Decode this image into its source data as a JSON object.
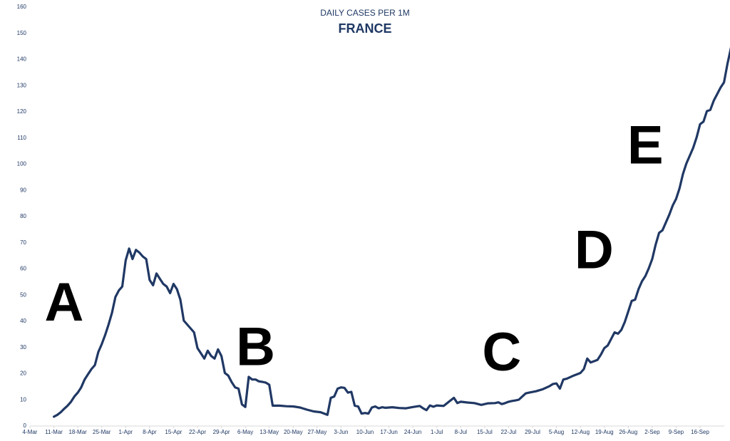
{
  "chart_data": {
    "type": "line",
    "title": "DAILY CASES PER 1M",
    "subtitle": "FRANCE",
    "xlabel": "",
    "ylabel": "",
    "ylim": [
      0,
      160
    ],
    "yticks": [
      0,
      10,
      20,
      30,
      40,
      50,
      60,
      70,
      80,
      90,
      100,
      110,
      120,
      130,
      140,
      150,
      160
    ],
    "xlim": [
      "2020-03-04",
      "2020-09-21"
    ],
    "x_tick_labels": [
      "4-Mar",
      "11-Mar",
      "18-Mar",
      "25-Mar",
      "1-Apr",
      "8-Apr",
      "15-Apr",
      "22-Apr",
      "29-Apr",
      "6-May",
      "13-May",
      "20-May",
      "27-May",
      "3-Jun",
      "10-Jun",
      "17-Jun",
      "24-Jun",
      "1-Jul",
      "8-Jul",
      "15-Jul",
      "22-Jul",
      "29-Jul",
      "5-Aug",
      "12-Aug",
      "19-Aug",
      "26-Aug",
      "2-Sep",
      "9-Sep",
      "16-Sep"
    ],
    "grid": false,
    "legend": "none",
    "line_color": "#203864",
    "annotations": [
      {
        "text": "A",
        "x": "2020-03-14",
        "y": 40
      },
      {
        "text": "B",
        "x": "2020-05-09",
        "y": 23
      },
      {
        "text": "C",
        "x": "2020-07-20",
        "y": 21
      },
      {
        "text": "D",
        "x": "2020-08-16",
        "y": 60
      },
      {
        "text": "E",
        "x": "2020-08-31",
        "y": 100
      }
    ],
    "series": [
      {
        "points": [
          [
            "2020-03-11",
            3.3
          ],
          [
            "2020-03-12",
            4
          ],
          [
            "2020-03-13",
            5
          ],
          [
            "2020-03-14",
            6.3
          ],
          [
            "2020-03-15",
            7.5
          ],
          [
            "2020-03-16",
            9
          ],
          [
            "2020-03-17",
            11
          ],
          [
            "2020-03-18",
            12.5
          ],
          [
            "2020-03-19",
            14.5
          ],
          [
            "2020-03-20",
            17.5
          ],
          [
            "2020-03-21",
            19.5
          ],
          [
            "2020-03-22",
            21.5
          ],
          [
            "2020-03-23",
            23
          ],
          [
            "2020-03-24",
            28
          ],
          [
            "2020-03-25",
            31
          ],
          [
            "2020-03-26",
            34.5
          ],
          [
            "2020-03-27",
            38.5
          ],
          [
            "2020-03-28",
            43
          ],
          [
            "2020-03-29",
            49
          ],
          [
            "2020-03-30",
            51.5
          ],
          [
            "2020-03-31",
            53
          ],
          [
            "2020-04-01",
            63
          ],
          [
            "2020-04-02",
            67.5
          ],
          [
            "2020-04-03",
            63.5
          ],
          [
            "2020-04-04",
            67
          ],
          [
            "2020-04-05",
            66
          ],
          [
            "2020-04-06",
            64.5
          ],
          [
            "2020-04-07",
            63.5
          ],
          [
            "2020-04-08",
            55.5
          ],
          [
            "2020-04-09",
            53.5
          ],
          [
            "2020-04-10",
            58
          ],
          [
            "2020-04-11",
            56
          ],
          [
            "2020-04-12",
            54
          ],
          [
            "2020-04-13",
            53
          ],
          [
            "2020-04-14",
            50.5
          ],
          [
            "2020-04-15",
            54
          ],
          [
            "2020-04-16",
            52
          ],
          [
            "2020-04-17",
            48
          ],
          [
            "2020-04-18",
            40
          ],
          [
            "2020-04-19",
            38.5
          ],
          [
            "2020-04-20",
            37
          ],
          [
            "2020-04-21",
            35.5
          ],
          [
            "2020-04-22",
            29.5
          ],
          [
            "2020-04-23",
            27.5
          ],
          [
            "2020-04-24",
            25.5
          ],
          [
            "2020-04-25",
            28.5
          ],
          [
            "2020-04-26",
            26.5
          ],
          [
            "2020-04-27",
            25.5
          ],
          [
            "2020-04-28",
            29
          ],
          [
            "2020-04-29",
            26.5
          ],
          [
            "2020-04-30",
            20
          ],
          [
            "2020-05-01",
            19
          ],
          [
            "2020-05-02",
            16.5
          ],
          [
            "2020-05-03",
            14.5
          ],
          [
            "2020-05-04",
            14
          ],
          [
            "2020-05-05",
            8
          ],
          [
            "2020-05-06",
            7
          ],
          [
            "2020-05-07",
            18.5
          ],
          [
            "2020-05-08",
            17.5
          ],
          [
            "2020-05-09",
            17.5
          ],
          [
            "2020-05-10",
            16.8
          ],
          [
            "2020-05-11",
            16.6
          ],
          [
            "2020-05-12",
            16.3
          ],
          [
            "2020-05-13",
            15.5
          ],
          [
            "2020-05-14",
            7.5
          ],
          [
            "2020-05-16",
            7.5
          ],
          [
            "2020-05-18",
            7.3
          ],
          [
            "2020-05-20",
            7.2
          ],
          [
            "2020-05-22",
            6.8
          ],
          [
            "2020-05-24",
            6
          ],
          [
            "2020-05-26",
            5.3
          ],
          [
            "2020-05-28",
            5
          ],
          [
            "2020-05-30",
            4
          ],
          [
            "2020-05-31",
            10.5
          ],
          [
            "2020-06-01",
            11
          ],
          [
            "2020-06-02",
            14
          ],
          [
            "2020-06-03",
            14.5
          ],
          [
            "2020-06-04",
            14.3
          ],
          [
            "2020-06-05",
            12.5
          ],
          [
            "2020-06-06",
            12.8
          ],
          [
            "2020-06-07",
            7.5
          ],
          [
            "2020-06-08",
            7.2
          ],
          [
            "2020-06-09",
            4.5
          ],
          [
            "2020-06-10",
            4.7
          ],
          [
            "2020-06-11",
            4.5
          ],
          [
            "2020-06-12",
            6.8
          ],
          [
            "2020-06-13",
            7.2
          ],
          [
            "2020-06-14",
            6.5
          ],
          [
            "2020-06-15",
            6.9
          ],
          [
            "2020-06-16",
            6.7
          ],
          [
            "2020-06-18",
            6.9
          ],
          [
            "2020-06-20",
            6.6
          ],
          [
            "2020-06-22",
            6.5
          ],
          [
            "2020-06-24",
            7
          ],
          [
            "2020-06-26",
            7.4
          ],
          [
            "2020-06-27",
            6.5
          ],
          [
            "2020-06-28",
            5.8
          ],
          [
            "2020-06-29",
            7.6
          ],
          [
            "2020-06-30",
            7.1
          ],
          [
            "2020-07-01",
            7.6
          ],
          [
            "2020-07-03",
            7.4
          ],
          [
            "2020-07-05",
            9.5
          ],
          [
            "2020-07-06",
            10.5
          ],
          [
            "2020-07-07",
            8.5
          ],
          [
            "2020-07-08",
            9
          ],
          [
            "2020-07-10",
            8.7
          ],
          [
            "2020-07-12",
            8.5
          ],
          [
            "2020-07-14",
            7.8
          ],
          [
            "2020-07-16",
            8.4
          ],
          [
            "2020-07-18",
            8.5
          ],
          [
            "2020-07-19",
            8.8
          ],
          [
            "2020-07-20",
            8.1
          ],
          [
            "2020-07-21",
            8.5
          ],
          [
            "2020-07-22",
            9
          ],
          [
            "2020-07-23",
            9.3
          ],
          [
            "2020-07-24",
            9.5
          ],
          [
            "2020-07-25",
            9.8
          ],
          [
            "2020-07-26",
            11
          ],
          [
            "2020-07-27",
            12.2
          ],
          [
            "2020-07-28",
            12.5
          ],
          [
            "2020-07-30",
            13
          ],
          [
            "2020-08-01",
            13.8
          ],
          [
            "2020-08-03",
            15
          ],
          [
            "2020-08-04",
            15.8
          ],
          [
            "2020-08-05",
            16
          ],
          [
            "2020-08-06",
            14
          ],
          [
            "2020-08-07",
            17.5
          ],
          [
            "2020-08-08",
            17.8
          ],
          [
            "2020-08-10",
            19
          ],
          [
            "2020-08-12",
            20
          ],
          [
            "2020-08-13",
            21.5
          ],
          [
            "2020-08-14",
            25.5
          ],
          [
            "2020-08-15",
            24
          ],
          [
            "2020-08-16",
            24.5
          ],
          [
            "2020-08-17",
            25
          ],
          [
            "2020-08-18",
            27
          ],
          [
            "2020-08-19",
            29.5
          ],
          [
            "2020-08-20",
            30.5
          ],
          [
            "2020-08-21",
            33
          ],
          [
            "2020-08-22",
            35.5
          ],
          [
            "2020-08-23",
            35
          ],
          [
            "2020-08-24",
            36.5
          ],
          [
            "2020-08-25",
            39.5
          ],
          [
            "2020-08-26",
            43.5
          ],
          [
            "2020-08-27",
            47.5
          ],
          [
            "2020-08-28",
            48
          ],
          [
            "2020-08-29",
            52
          ],
          [
            "2020-08-30",
            55
          ],
          [
            "2020-08-31",
            57
          ],
          [
            "2020-09-01",
            60
          ],
          [
            "2020-09-02",
            63.5
          ],
          [
            "2020-09-03",
            69
          ],
          [
            "2020-09-04",
            73.5
          ],
          [
            "2020-09-05",
            74.5
          ],
          [
            "2020-09-06",
            77.5
          ],
          [
            "2020-09-07",
            80.5
          ],
          [
            "2020-09-08",
            84
          ],
          [
            "2020-09-09",
            86.5
          ],
          [
            "2020-09-10",
            90.5
          ],
          [
            "2020-09-11",
            96
          ],
          [
            "2020-09-12",
            100
          ],
          [
            "2020-09-13",
            103
          ],
          [
            "2020-09-14",
            106
          ],
          [
            "2020-09-15",
            110
          ],
          [
            "2020-09-16",
            115
          ],
          [
            "2020-09-17",
            116
          ],
          [
            "2020-09-18",
            120
          ],
          [
            "2020-09-19",
            120.5
          ],
          [
            "2020-09-20",
            124
          ],
          [
            "2020-09-21",
            126.5
          ],
          [
            "2020-09-22",
            129
          ],
          [
            "2020-09-23",
            131
          ],
          [
            "2020-09-24",
            138
          ],
          [
            "2020-09-25",
            144
          ],
          [
            "2020-09-26",
            149
          ],
          [
            "2020-09-27",
            153
          ]
        ]
      }
    ]
  }
}
